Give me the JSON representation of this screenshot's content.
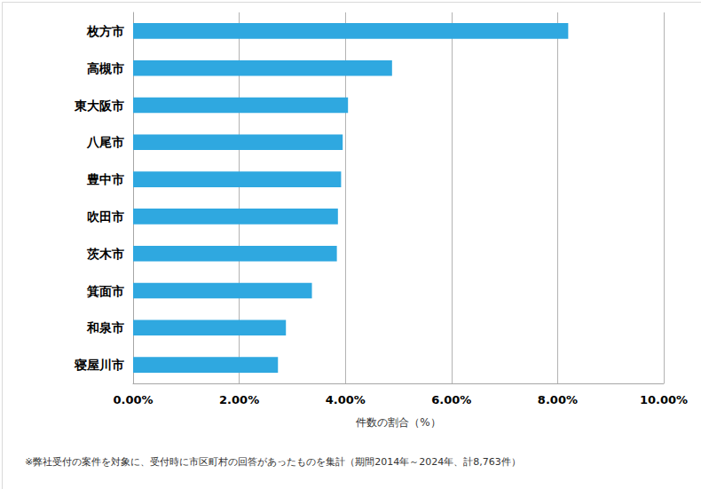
{
  "chart_data": {
    "type": "bar",
    "orientation": "horizontal",
    "categories": [
      "枚方市",
      "高槻市",
      "東大阪市",
      "八尾市",
      "豊中市",
      "吹田市",
      "茨木市",
      "箕面市",
      "和泉市",
      "寝屋川市"
    ],
    "values": [
      8.2,
      4.88,
      4.05,
      3.95,
      3.92,
      3.86,
      3.84,
      3.37,
      2.88,
      2.73
    ],
    "color": "#2fa8e0",
    "x_label": "件数の割合（%）",
    "xlim": [
      0,
      10
    ],
    "xticks": [
      {
        "value": 0,
        "label": "0.00%"
      },
      {
        "value": 2,
        "label": "2.00%"
      },
      {
        "value": 4,
        "label": "4.00%"
      },
      {
        "value": 6,
        "label": "6.00%"
      },
      {
        "value": 8,
        "label": "8.00%"
      },
      {
        "value": 10,
        "label": "10.00%"
      }
    ],
    "grid": true,
    "annotation": "※弊社受付の案件を対象に、受付時に市区町村の回答があったものを集計（期間2014年～2024年、計8,763件）"
  }
}
